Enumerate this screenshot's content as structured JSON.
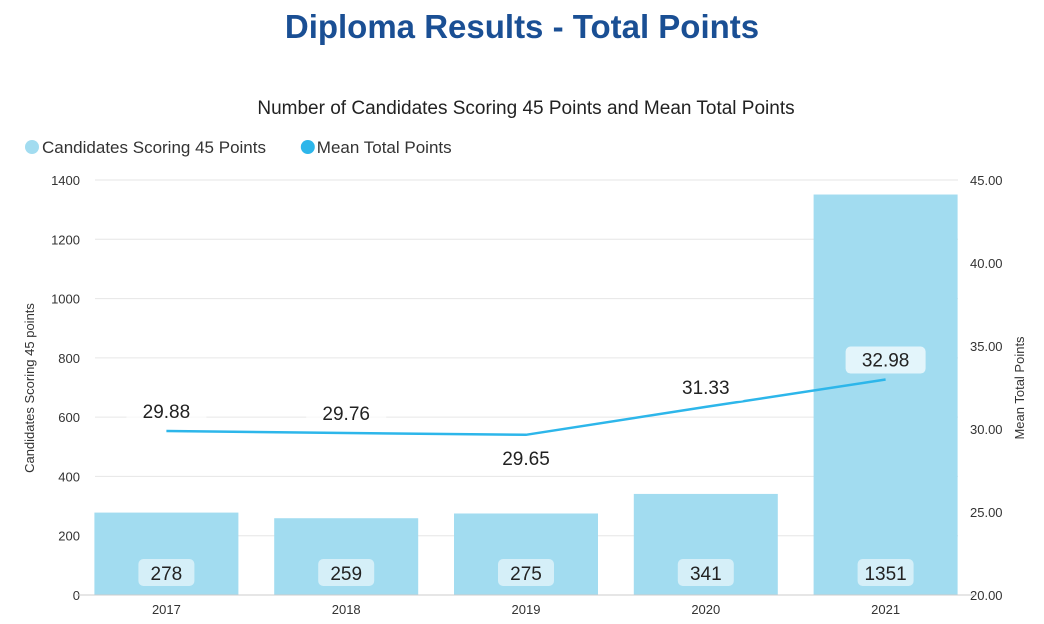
{
  "page_title": "Diploma Results - Total Points",
  "chart_data": {
    "type": "bar+line",
    "title": "Number of Candidates Scoring 45 Points and Mean Total Points",
    "categories": [
      "2017",
      "2018",
      "2019",
      "2020",
      "2021"
    ],
    "series": [
      {
        "name": "Candidates Scoring 45 Points",
        "type": "bar",
        "axis": "left",
        "values": [
          278,
          259,
          275,
          341,
          1351
        ],
        "color": "#a2dcf0"
      },
      {
        "name": "Mean Total Points",
        "type": "line",
        "axis": "right",
        "values": [
          29.88,
          29.76,
          29.65,
          31.33,
          32.98
        ],
        "color": "#2db6ea"
      }
    ],
    "ylabel": "Candidates Scoring 45 points",
    "ylabel_right": "Mean Total Points",
    "ylim": [
      0,
      1400
    ],
    "yticks": [
      0,
      200,
      400,
      600,
      800,
      1000,
      1200,
      1400
    ],
    "ylim_right": [
      20,
      45
    ],
    "yticks_right": [
      "20.00",
      "25.00",
      "30.00",
      "35.00",
      "40.00",
      "45.00"
    ],
    "legend_position": "top-left",
    "grid": true
  }
}
